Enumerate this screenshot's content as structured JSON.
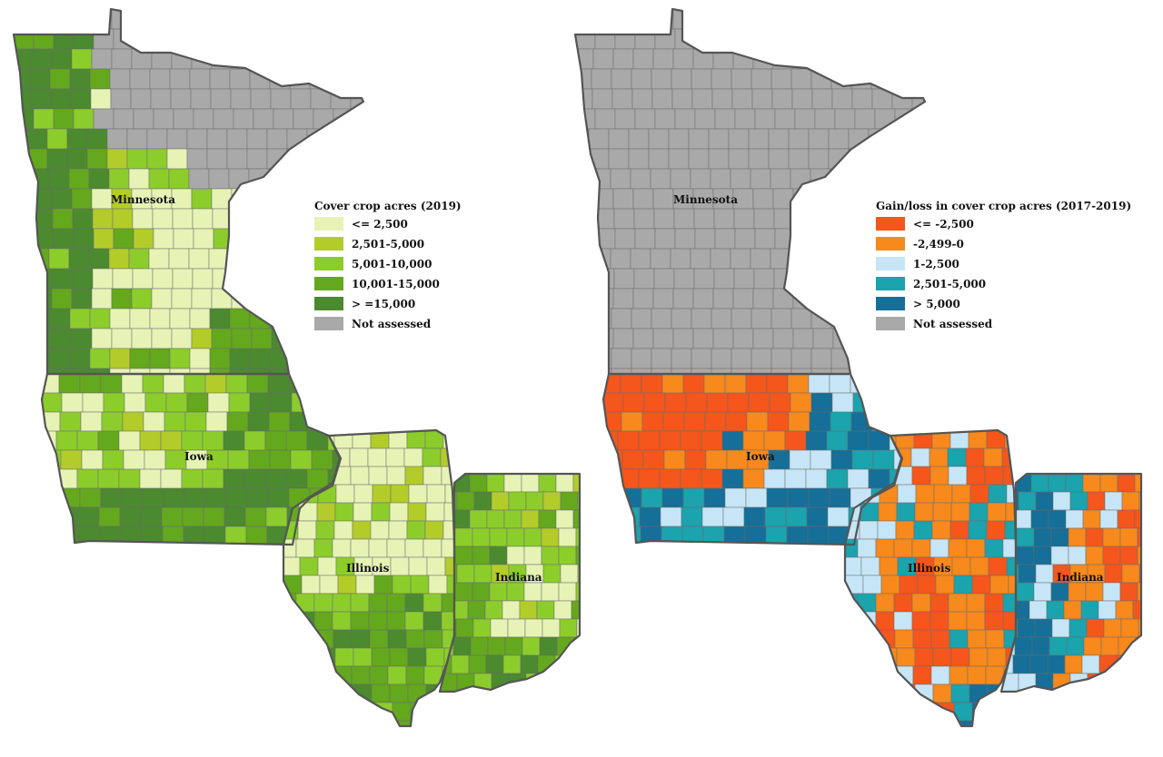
{
  "maps": [
    {
      "id": "left",
      "legend": {
        "title": "Cover crop acres (2019)",
        "items": [
          {
            "label": "<= 2,500",
            "color": "#e6f3b5"
          },
          {
            "label": "2,501-5,000",
            "color": "#b3cc2a"
          },
          {
            "label": "5,001-10,000",
            "color": "#8ccd2c"
          },
          {
            "label": "10,001-15,000",
            "color": "#64a81e"
          },
          {
            "label": "> =15,000",
            "color": "#4b8a2e"
          },
          {
            "label": "Not assessed",
            "color": "#a9a9a9"
          }
        ]
      },
      "states": {
        "minnesota": "Minnesota",
        "iowa": "Iowa",
        "illinois": "Illinois",
        "indiana": "Indiana"
      }
    },
    {
      "id": "right",
      "legend": {
        "title": "Gain/loss in cover crop acres (2017-2019)",
        "items": [
          {
            "label": "<= -2,500",
            "color": "#f4561c"
          },
          {
            "label": "-2,499-0",
            "color": "#f7891d"
          },
          {
            "label": "1-2,500",
            "color": "#c6e6f7"
          },
          {
            "label": "2,501-5,000",
            "color": "#1ba3ae"
          },
          {
            "label": "> 5,000",
            "color": "#156f98"
          },
          {
            "label": "Not assessed",
            "color": "#a9a9a9"
          }
        ]
      },
      "states": {
        "minnesota": "Minnesota",
        "iowa": "Iowa",
        "illinois": "Illinois",
        "indiana": "Indiana"
      }
    }
  ]
}
